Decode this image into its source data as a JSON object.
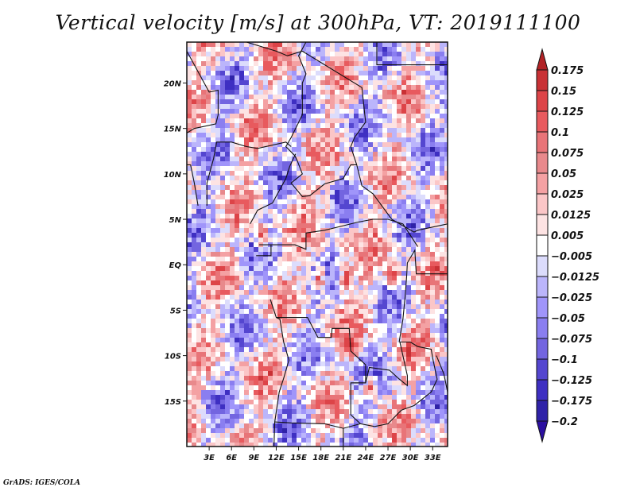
{
  "chart_data": {
    "type": "heatmap",
    "title": "Vertical velocity [m/s] at 300hPa, VT: 2019111100",
    "variable": "Vertical velocity",
    "units": "m/s",
    "level": "300hPa",
    "valid_time": "2019111100",
    "xlabel": "",
    "ylabel": "",
    "x_ticks": [
      "3E",
      "6E",
      "9E",
      "12E",
      "15E",
      "18E",
      "21E",
      "24E",
      "27E",
      "30E",
      "33E"
    ],
    "x_tick_values": [
      3,
      6,
      9,
      12,
      15,
      18,
      21,
      24,
      27,
      30,
      33
    ],
    "y_ticks": [
      "20N",
      "15N",
      "10N",
      "5N",
      "EQ",
      "5S",
      "10S",
      "15S"
    ],
    "y_tick_values": [
      20,
      15,
      10,
      5,
      0,
      -5,
      -10,
      -15
    ],
    "xlim": [
      0,
      35
    ],
    "ylim": [
      -20,
      24.5
    ],
    "grid": false,
    "colorbar": {
      "placement": "right",
      "orientation": "vertical",
      "labels": [
        "0.175",
        "0.15",
        "0.125",
        "0.1",
        "0.075",
        "0.05",
        "0.025",
        "0.0125",
        "0.005",
        "-0.005",
        "-0.0125",
        "-0.025",
        "-0.05",
        "-0.075",
        "-0.1",
        "-0.125",
        "-0.175",
        "-0.2"
      ],
      "levels": [
        0.175,
        0.15,
        0.125,
        0.1,
        0.075,
        0.05,
        0.025,
        0.0125,
        0.005,
        -0.005,
        -0.0125,
        -0.025,
        -0.05,
        -0.075,
        -0.1,
        -0.125,
        -0.175,
        -0.2
      ],
      "colors": [
        "#b22326",
        "#c93135",
        "#dd4448",
        "#e85a5e",
        "#e87478",
        "#e8898c",
        "#f4a1a3",
        "#fbc6c7",
        "#fde3e3",
        "#ffffff",
        "#dcdcfc",
        "#bbb5fb",
        "#a095fa",
        "#8a7ef0",
        "#7365e0",
        "#5446d0",
        "#3e2fc2",
        "#2f22a8",
        "#2b0fa0"
      ],
      "extend": "both"
    },
    "description": "Shaded field over Central Africa; alternating positive (red) and negative (blue) vertical velocity cells with strong upward motion (dark red) patches near the equator and 8-15S."
  },
  "footer": {
    "credit": "GrADS: IGES/COLA"
  }
}
